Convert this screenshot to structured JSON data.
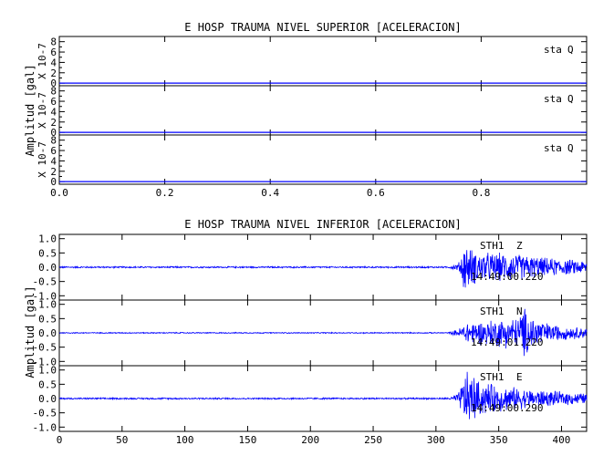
{
  "colors": {
    "trace": "#0000ff",
    "axis": "#000000",
    "background": "#ffffff"
  },
  "chart_data": [
    {
      "type": "line",
      "title": "E HOSP TRAUMA NIVEL SUPERIOR [ACELERACION]",
      "ylabel": "Amplitud [gal]",
      "x_tick_labels": [
        "0.0",
        "0.2",
        "0.4",
        "0.6",
        "0.8"
      ],
      "x_ticks": [
        0.0,
        0.2,
        0.4,
        0.6,
        0.8
      ],
      "xlim": [
        0,
        1.0
      ],
      "panels": [
        {
          "scale_label": "X 10-7",
          "y_tick_labels": [
            "8",
            "6",
            "4",
            "2",
            "0"
          ],
          "y_ticks": [
            8,
            6,
            4,
            2,
            0
          ],
          "ylim": [
            -0.5,
            9
          ],
          "annotation": [
            "sta",
            "Q"
          ],
          "series": [
            {
              "values": [
                0,
                0
              ]
            }
          ]
        },
        {
          "scale_label": "X 10-7",
          "y_tick_labels": [
            "8",
            "6",
            "4",
            "2",
            "0"
          ],
          "y_ticks": [
            8,
            6,
            4,
            2,
            0
          ],
          "ylim": [
            -0.5,
            9
          ],
          "annotation": [
            "sta",
            "Q"
          ],
          "series": [
            {
              "values": [
                0,
                0
              ]
            }
          ]
        },
        {
          "scale_label": "X 10-7",
          "y_tick_labels": [
            "8",
            "6",
            "4",
            "2",
            "0"
          ],
          "y_ticks": [
            8,
            6,
            4,
            2,
            0
          ],
          "ylim": [
            -0.5,
            9
          ],
          "annotation": [
            "sta",
            "Q"
          ],
          "series": [
            {
              "values": [
                0,
                0
              ]
            }
          ]
        }
      ]
    },
    {
      "type": "line",
      "title": "E HOSP TRAUMA NIVEL INFERIOR [ACELERACION]",
      "ylabel": "Amplitud [gal]",
      "x_tick_labels": [
        "0",
        "50",
        "100",
        "150",
        "200",
        "250",
        "300",
        "350",
        "400"
      ],
      "x_ticks": [
        0,
        50,
        100,
        150,
        200,
        250,
        300,
        350,
        400
      ],
      "xlim": [
        0,
        420
      ],
      "panels": [
        {
          "y_tick_labels": [
            "1.0",
            "0.5",
            "0.0",
            "-0.5",
            "-1.0"
          ],
          "y_ticks": [
            1.0,
            0.5,
            0.0,
            -0.5,
            -1.0
          ],
          "ylim": [
            -1.15,
            1.15
          ],
          "station": "STH1",
          "component": "Z",
          "time": "14:49:00.220",
          "envelope": {
            "x": [
              0,
              310,
              318,
              323,
              327,
              333,
              345,
              360,
              375,
              390,
              405,
              420
            ],
            "amp": [
              0.03,
              0.03,
              0.15,
              1.0,
              0.75,
              0.6,
              0.55,
              0.55,
              0.45,
              0.35,
              0.3,
              0.25
            ]
          }
        },
        {
          "y_tick_labels": [
            "1.0",
            "0.5",
            "0.0",
            "-0.5",
            "-1.0"
          ],
          "y_ticks": [
            1.0,
            0.5,
            0.0,
            -0.5,
            -1.0
          ],
          "ylim": [
            -1.15,
            1.15
          ],
          "station": "STH1",
          "component": "N",
          "time": "14:49:01.220",
          "envelope": {
            "x": [
              0,
              310,
              318,
              325,
              335,
              350,
              365,
              370,
              375,
              390,
              405,
              420
            ],
            "amp": [
              0.02,
              0.02,
              0.15,
              0.45,
              0.45,
              0.55,
              0.6,
              1.0,
              0.7,
              0.35,
              0.25,
              0.2
            ]
          }
        },
        {
          "y_tick_labels": [
            "1.0",
            "0.5",
            "0.0",
            "-0.5",
            "-1.0"
          ],
          "y_ticks": [
            1.0,
            0.5,
            0.0,
            -0.5,
            -1.0
          ],
          "ylim": [
            -1.15,
            1.15
          ],
          "station": "STH1",
          "component": "E",
          "time": "14:49:00.290",
          "envelope": {
            "x": [
              0,
              310,
              318,
              323,
              328,
              333,
              345,
              360,
              375,
              390,
              405,
              420
            ],
            "amp": [
              0.03,
              0.03,
              0.2,
              1.0,
              1.05,
              0.7,
              0.55,
              0.45,
              0.35,
              0.3,
              0.25,
              0.2
            ]
          }
        }
      ]
    }
  ]
}
